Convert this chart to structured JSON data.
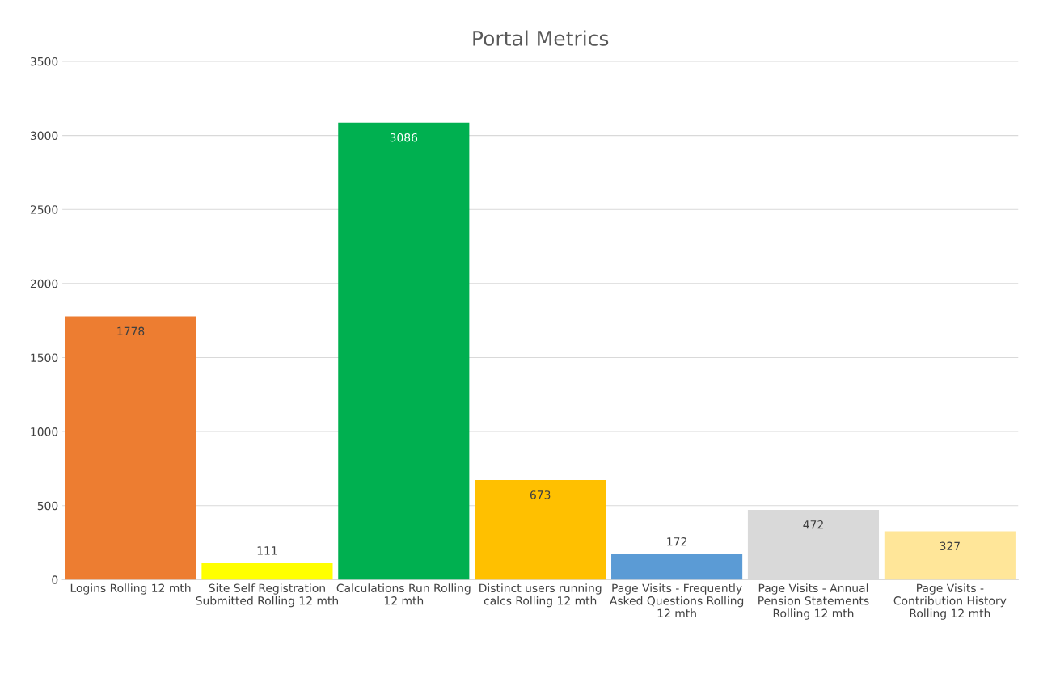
{
  "chart_data": {
    "type": "bar",
    "title": "Portal Metrics",
    "categories": [
      "Logins Rolling 12 mth",
      "Site Self Registration Submitted Rolling 12 mth",
      "Calculations Run Rolling 12 mth",
      "Distinct users running calcs Rolling 12 mth",
      "Page Visits - Frequently Asked Questions Rolling 12 mth",
      "Page Visits - Annual Pension Statements Rolling 12 mth",
      "Page Visits - Contribution History Rolling 12 mth"
    ],
    "values": [
      1778,
      111,
      3086,
      673,
      172,
      472,
      327
    ],
    "colors": [
      "#ed7d31",
      "#ffff00",
      "#00b050",
      "#ffc000",
      "#5b9bd5",
      "#d9d9d9",
      "#ffe699"
    ],
    "ylim": [
      0,
      3500
    ],
    "yticks": [
      0,
      500,
      1000,
      1500,
      2000,
      2500,
      3000,
      3500
    ],
    "grid": "y",
    "data_labels": true,
    "legend": false
  }
}
